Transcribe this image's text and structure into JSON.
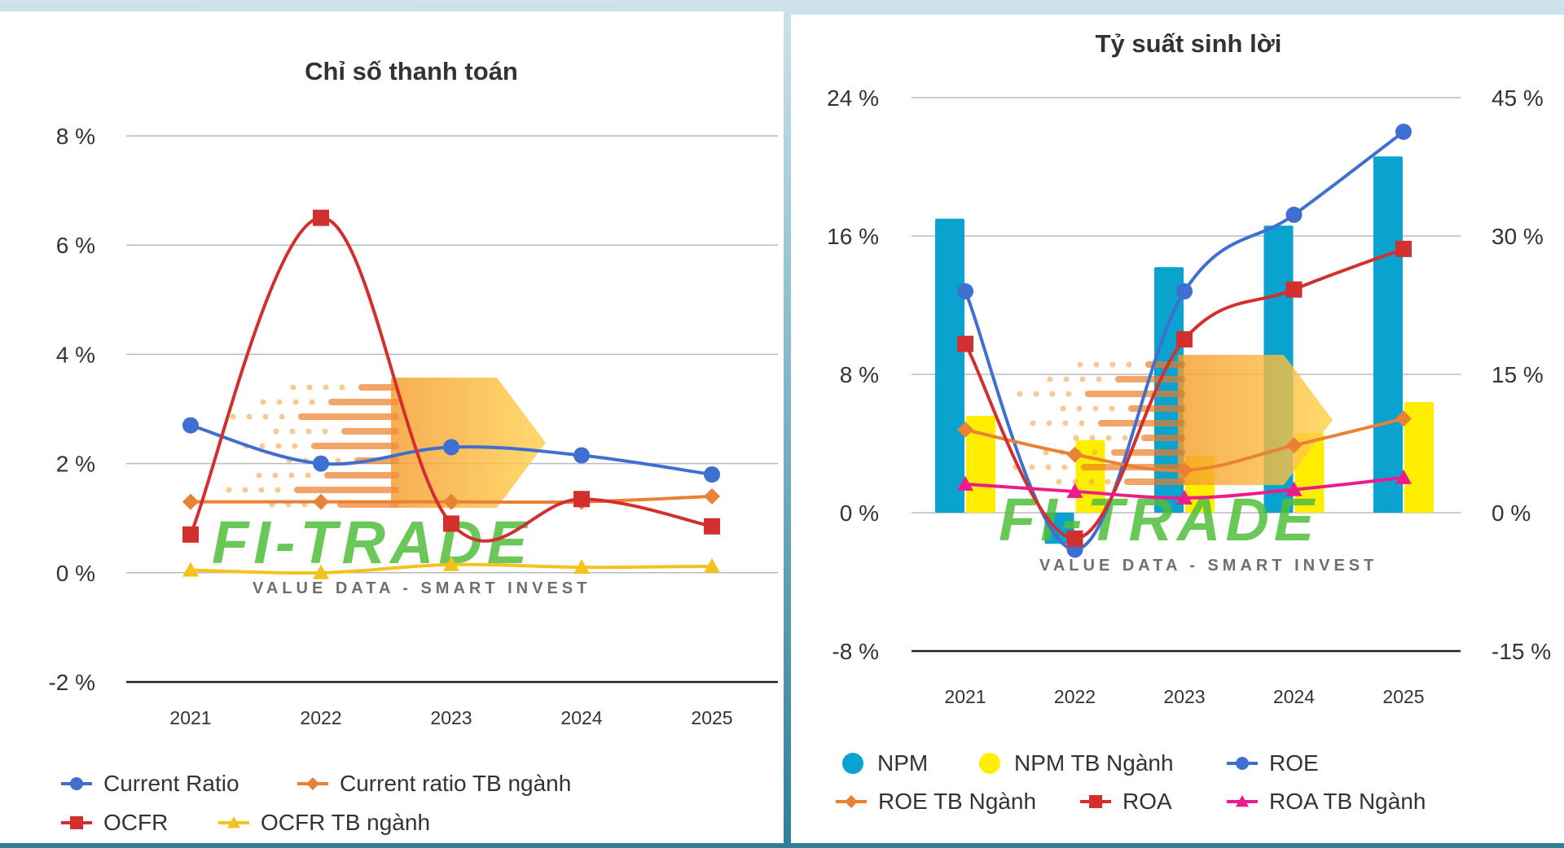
{
  "chart_data": [
    {
      "type": "line",
      "title": "Chỉ số thanh toán",
      "categories": [
        "2021",
        "2022",
        "2023",
        "2024",
        "2025"
      ],
      "y_ticks": [
        "8 %",
        "6 %",
        "4 %",
        "2 %",
        "0 %",
        "-2 %"
      ],
      "ylim": [
        -2,
        8
      ],
      "grid": true,
      "legend_position": "bottom",
      "series": [
        {
          "name": "Current Ratio",
          "values": [
            2.7,
            2.0,
            2.3,
            2.15,
            1.8
          ],
          "color": "#3f6fd1",
          "marker": "circle"
        },
        {
          "name": "Current ratio TB ngành",
          "values": [
            1.3,
            1.3,
            1.3,
            1.3,
            1.4
          ],
          "color": "#e98234",
          "marker": "diamond"
        },
        {
          "name": "OCFR",
          "values": [
            0.7,
            6.5,
            0.9,
            1.35,
            0.85
          ],
          "color": "#d32f2f",
          "marker": "square"
        },
        {
          "name": "OCFR TB ngành",
          "values": [
            0.05,
            0.0,
            0.15,
            0.1,
            0.12
          ],
          "color": "#f5c21b",
          "marker": "triangle"
        }
      ]
    },
    {
      "type": "bar+line",
      "title": "Tỷ suất sinh lời",
      "categories": [
        "2021",
        "2022",
        "2023",
        "2024",
        "2025"
      ],
      "y_ticks_left": [
        "24 %",
        "16 %",
        "8 %",
        "0 %",
        "-8 %"
      ],
      "y_ticks_right": [
        "45 %",
        "30 %",
        "15 %",
        "0 %",
        "-15 %"
      ],
      "ylim_left": [
        -8,
        24
      ],
      "ylim_right": [
        -15,
        45
      ],
      "grid": true,
      "legend_position": "bottom",
      "series": [
        {
          "name": "NPM",
          "kind": "bar",
          "axis": "left",
          "values": [
            17.0,
            -1.8,
            14.2,
            16.6,
            20.6
          ],
          "color": "#0aa3cf",
          "marker": "circle"
        },
        {
          "name": "NPM TB Ngành",
          "kind": "bar",
          "axis": "left",
          "values": [
            5.6,
            4.2,
            3.3,
            4.6,
            6.4
          ],
          "color": "#ffee00",
          "marker": "circle"
        },
        {
          "name": "ROE",
          "kind": "line",
          "axis": "right",
          "values": [
            24,
            -4,
            24,
            32.3,
            41.3
          ],
          "color": "#3f6fd1",
          "marker": "circle"
        },
        {
          "name": "ROE TB Ngành",
          "kind": "line",
          "axis": "right",
          "values": [
            9.0,
            6.3,
            4.6,
            7.3,
            10.2
          ],
          "color": "#e98234",
          "marker": "diamond"
        },
        {
          "name": "ROA",
          "kind": "line",
          "axis": "right",
          "values": [
            18.3,
            -2.8,
            18.8,
            24.2,
            28.6
          ],
          "color": "#d32f2f",
          "marker": "square"
        },
        {
          "name": "ROA TB Ngành",
          "kind": "line",
          "axis": "right",
          "values": [
            3.1,
            2.3,
            1.6,
            2.5,
            3.8
          ],
          "color": "#ee1c8a",
          "marker": "triangle"
        }
      ]
    }
  ],
  "watermark": {
    "logo_text": "FI-TRADE",
    "slogan": "VALUE DATA - SMART INVEST",
    "colors": {
      "green": "#4fbf3a",
      "orange": "#f5a623"
    }
  }
}
